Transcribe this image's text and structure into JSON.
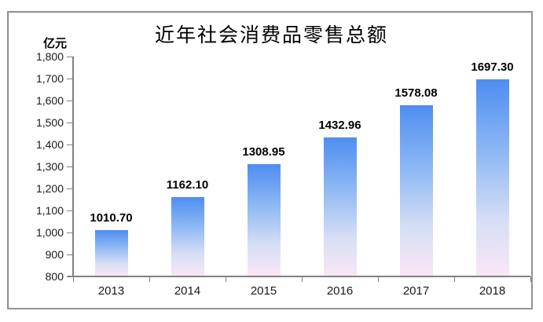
{
  "frame": {
    "border_color": "#949494"
  },
  "chart_data": {
    "type": "bar",
    "title": "近年社会消费品零售总额",
    "ylabel": "亿元",
    "xlabel": "",
    "categories": [
      "2013",
      "2014",
      "2015",
      "2016",
      "2017",
      "2018"
    ],
    "values": [
      1010.7,
      1162.1,
      1308.95,
      1432.96,
      1578.08,
      1697.3
    ],
    "data_labels": [
      "1010.70",
      "1162.10",
      "1308.95",
      "1432.96",
      "1578.08",
      "1697.30"
    ],
    "ylim": [
      800,
      1800
    ],
    "ytick_step": 100,
    "ytick_labels": [
      "800",
      "900",
      "1,000",
      "1,100",
      "1,200",
      "1,300",
      "1,400",
      "1,500",
      "1,600",
      "1,700",
      "1,800"
    ],
    "grid": false,
    "legend": "none",
    "colors": {
      "bar_gradient": [
        "#4E8DF1",
        "#8FB9F4",
        "#D6DEF5",
        "#F9E7F5"
      ],
      "axis": "#808080",
      "tick_text": "#1a1a1a",
      "title_text": "#000000",
      "unit_text": "#000000"
    }
  }
}
